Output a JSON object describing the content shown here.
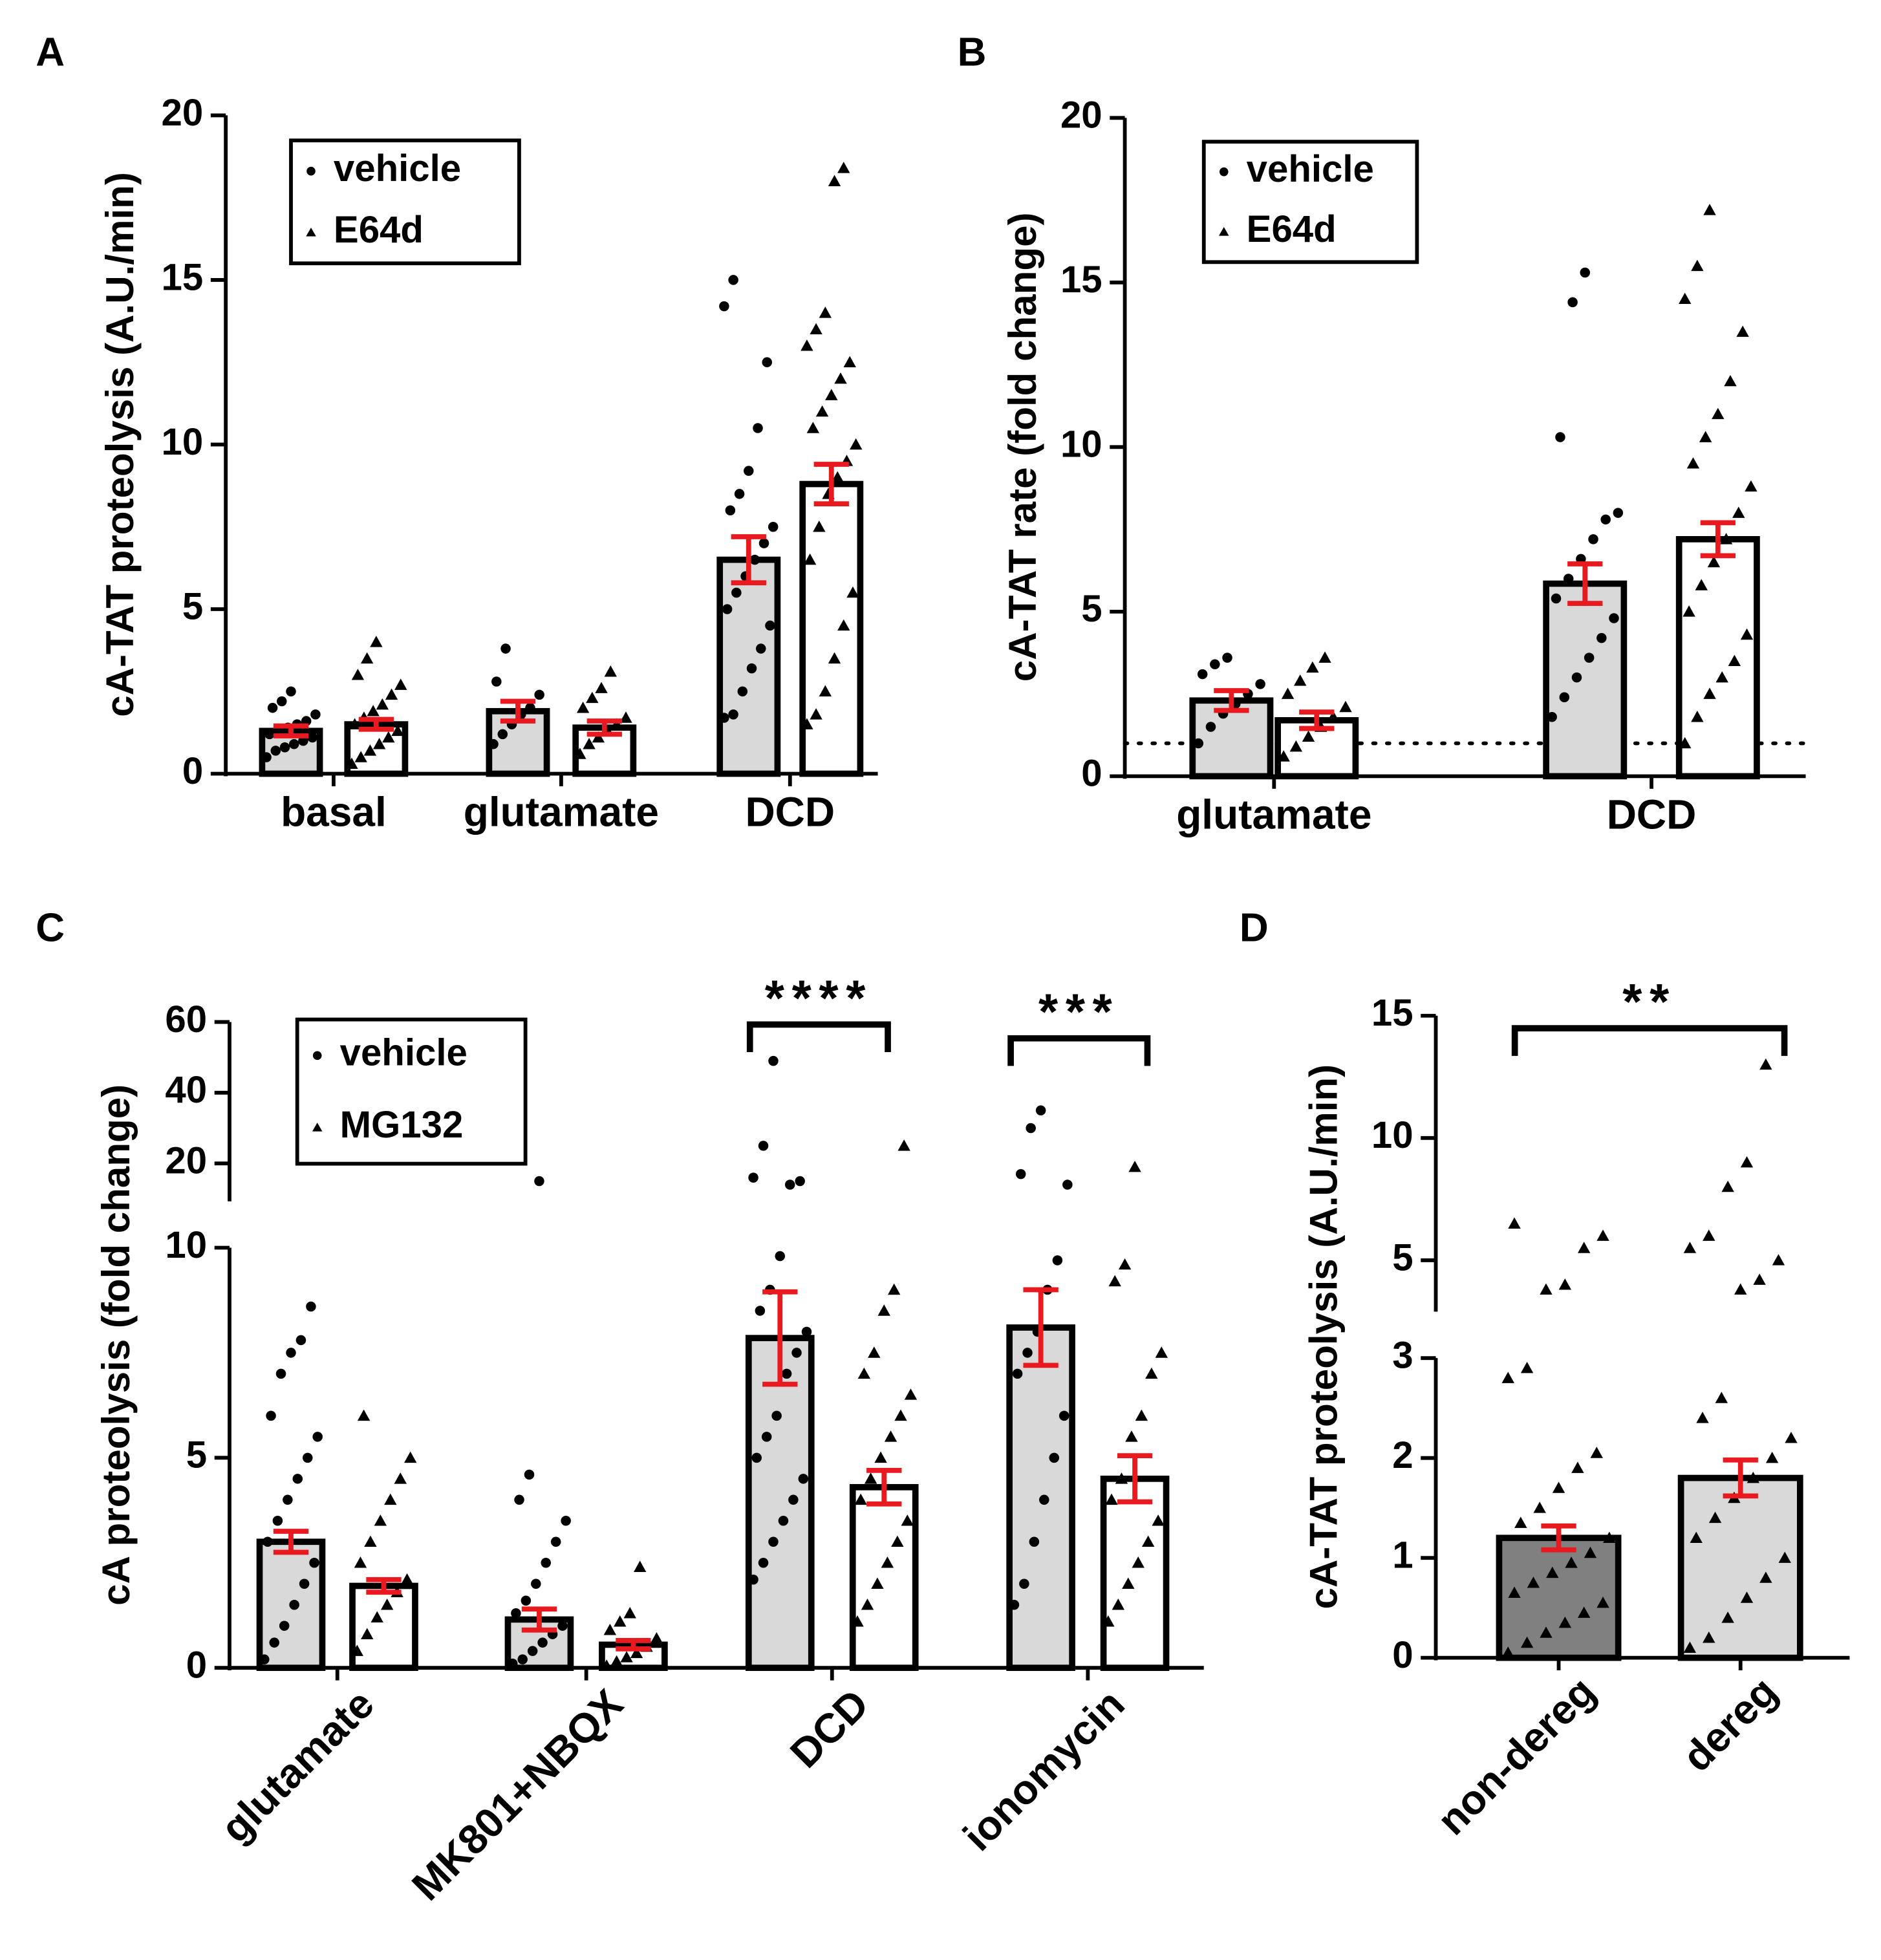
{
  "chart_data": [
    {
      "type": "bar",
      "panel": "A",
      "y_label": "cA-TAT proteolysis (A.U./min)",
      "categories": [
        "basal",
        "glutamate",
        "DCD"
      ],
      "ysegments": [
        {
          "ylim": [
            0,
            20
          ],
          "yticks": [
            0,
            5,
            10,
            15,
            20
          ]
        }
      ],
      "error_color": "#e8191f",
      "series": [
        {
          "name": "vehicle",
          "marker": "circle",
          "color": "#d9d9d9",
          "values": [
            1.3,
            1.9,
            6.5
          ],
          "errors": [
            0.15,
            0.3,
            0.7
          ],
          "points": [
            [
              0.5,
              0.7,
              0.8,
              0.9,
              1.0,
              1.1,
              1.2,
              1.3,
              1.4,
              1.5,
              1.6,
              1.8,
              2.0,
              2.2,
              2.5
            ],
            [
              0.9,
              1.2,
              1.5,
              1.8,
              2.0,
              2.4,
              2.8,
              3.8
            ],
            [
              1.7,
              1.8,
              2.5,
              3.2,
              3.8,
              4.5,
              5.0,
              5.5,
              6.0,
              6.5,
              7.0,
              7.5,
              8.0,
              8.5,
              9.2,
              10.5,
              12.5,
              14.2,
              15.0
            ]
          ]
        },
        {
          "name": "E64d",
          "marker": "triangle",
          "color": "#ffffff",
          "values": [
            1.5,
            1.4,
            8.8
          ],
          "errors": [
            0.15,
            0.2,
            0.6
          ],
          "points": [
            [
              0.3,
              0.5,
              0.7,
              0.9,
              1.1,
              1.3,
              1.5,
              1.7,
              1.9,
              2.1,
              2.4,
              2.7,
              3.0,
              3.5,
              4.0
            ],
            [
              0.6,
              0.9,
              1.1,
              1.3,
              1.5,
              1.7,
              2.0,
              2.3,
              2.6,
              3.1
            ],
            [
              1.5,
              1.8,
              2.5,
              3.5,
              4.5,
              5.5,
              6.5,
              7.5,
              8.5,
              9.0,
              9.5,
              10.0,
              10.5,
              11.0,
              11.5,
              12.0,
              12.5,
              13.0,
              13.5,
              14.0,
              18.0,
              18.4
            ]
          ]
        }
      ]
    },
    {
      "type": "bar",
      "panel": "B",
      "y_label": "cA-TAT rate (fold change)",
      "categories": [
        "glutamate",
        "DCD"
      ],
      "ysegments": [
        {
          "ylim": [
            0,
            20
          ],
          "yticks": [
            0,
            5,
            10,
            15,
            20
          ]
        }
      ],
      "reference_line": 1,
      "error_color": "#e8191f",
      "series": [
        {
          "name": "vehicle",
          "marker": "circle",
          "color": "#d9d9d9",
          "values": [
            2.3,
            5.85
          ],
          "errors": [
            0.3,
            0.6
          ],
          "points": [
            [
              1.0,
              1.5,
              1.9,
              2.2,
              2.5,
              2.8,
              3.1,
              3.4,
              3.6
            ],
            [
              1.8,
              2.4,
              3.0,
              3.6,
              4.2,
              4.8,
              5.4,
              6.0,
              6.6,
              7.2,
              7.8,
              8.0,
              10.3,
              14.4,
              15.3
            ]
          ]
        },
        {
          "name": "E64d",
          "marker": "triangle",
          "color": "#ffffff",
          "values": [
            1.7,
            7.2
          ],
          "errors": [
            0.25,
            0.5
          ],
          "points": [
            [
              0.6,
              0.9,
              1.2,
              1.5,
              1.8,
              2.1,
              2.5,
              2.9,
              3.3,
              3.6
            ],
            [
              1.0,
              1.8,
              2.5,
              3.0,
              3.5,
              4.3,
              5.0,
              5.8,
              6.5,
              7.2,
              8.0,
              8.8,
              9.5,
              10.3,
              11.0,
              12.0,
              13.5,
              14.5,
              15.5,
              17.2
            ]
          ]
        }
      ]
    },
    {
      "type": "bar",
      "panel": "C",
      "y_label": "cA proteolysis (fold change)",
      "categories": [
        "glutamate",
        "MK801+NBQX",
        "DCD",
        "ionomycin"
      ],
      "ysegments": [
        {
          "ylim": [
            0,
            10
          ],
          "yticks": [
            0,
            5,
            10
          ]
        },
        {
          "ylim": [
            10,
            60
          ],
          "yticks": [
            20,
            40,
            60
          ]
        }
      ],
      "significance": [
        "****",
        "***"
      ],
      "error_color": "#e8191f",
      "series": [
        {
          "name": "vehicle",
          "marker": "circle",
          "color": "#d9d9d9",
          "values": [
            3.0,
            1.15,
            7.85,
            8.1
          ],
          "errors": [
            0.25,
            0.25,
            1.1,
            0.9
          ],
          "points": [
            [
              0.2,
              0.6,
              1.0,
              1.5,
              2.0,
              2.5,
              3.0,
              3.5,
              4.0,
              4.5,
              5.0,
              5.5,
              6.0,
              7.0,
              7.5,
              7.8,
              8.6
            ],
            [
              0.1,
              0.2,
              0.4,
              0.6,
              0.8,
              1.0,
              1.3,
              1.6,
              2.0,
              2.5,
              3.0,
              3.5,
              4.0,
              4.6,
              15
            ],
            [
              2.1,
              2.5,
              3.0,
              3.5,
              4.0,
              4.5,
              5.0,
              5.5,
              6.0,
              7.0,
              7.5,
              8.0,
              8.5,
              9.0,
              9.8,
              14,
              15,
              16,
              25,
              49
            ],
            [
              1.5,
              2.0,
              3.0,
              4.0,
              5.0,
              6.0,
              7.0,
              7.5,
              8.0,
              9.0,
              9.7,
              14,
              17,
              30,
              35
            ]
          ]
        },
        {
          "name": "MG132",
          "marker": "triangle",
          "color": "#ffffff",
          "values": [
            1.95,
            0.55,
            4.3,
            4.5
          ],
          "errors": [
            0.15,
            0.1,
            0.4,
            0.55
          ],
          "points": [
            [
              0.4,
              0.8,
              1.2,
              1.5,
              1.8,
              2.1,
              2.5,
              3.0,
              3.5,
              4.0,
              4.5,
              5.0,
              6.0
            ],
            [
              0.05,
              0.15,
              0.25,
              0.35,
              0.5,
              0.7,
              0.9,
              1.1,
              1.3,
              2.4
            ],
            [
              1.1,
              1.5,
              2.0,
              2.5,
              3.0,
              3.5,
              4.0,
              4.5,
              5.0,
              5.5,
              6.0,
              6.5,
              7.0,
              7.5,
              8.5,
              9.0,
              25
            ],
            [
              1.1,
              1.5,
              2.0,
              2.5,
              3.0,
              3.5,
              4.0,
              4.5,
              5.5,
              6.0,
              7.0,
              7.5,
              9.2,
              9.6,
              19
            ]
          ]
        }
      ]
    },
    {
      "type": "bar",
      "panel": "D",
      "y_label": "cA-TAT proteolysis (A.U./min)",
      "categories": [
        "non-dereg",
        "dereg"
      ],
      "ysegments": [
        {
          "ylim": [
            0,
            3
          ],
          "yticks": [
            0,
            1,
            2,
            3
          ]
        },
        {
          "ylim": [
            3,
            15
          ],
          "yticks": [
            5,
            10,
            15
          ]
        }
      ],
      "significance": [
        "**"
      ],
      "error_color": "#e8191f",
      "series": [
        {
          "marker": "triangle",
          "colors": [
            "#808080",
            "#d9d9d9"
          ],
          "values": [
            1.2,
            1.8
          ],
          "errors": [
            0.12,
            0.18
          ],
          "points": [
            [
              0.05,
              0.15,
              0.25,
              0.35,
              0.45,
              0.55,
              0.65,
              0.75,
              0.85,
              0.95,
              1.05,
              1.2,
              1.35,
              1.5,
              1.7,
              1.9,
              2.05,
              2.8,
              2.9,
              3.8,
              4.0,
              5.5,
              6.0,
              6.5
            ],
            [
              0.1,
              0.2,
              0.4,
              0.6,
              0.8,
              1.0,
              1.2,
              1.4,
              1.6,
              1.8,
              2.0,
              2.2,
              2.4,
              2.6,
              3.8,
              4.2,
              5.0,
              5.5,
              6.0,
              8.0,
              9.0,
              13.0
            ]
          ]
        }
      ]
    }
  ]
}
